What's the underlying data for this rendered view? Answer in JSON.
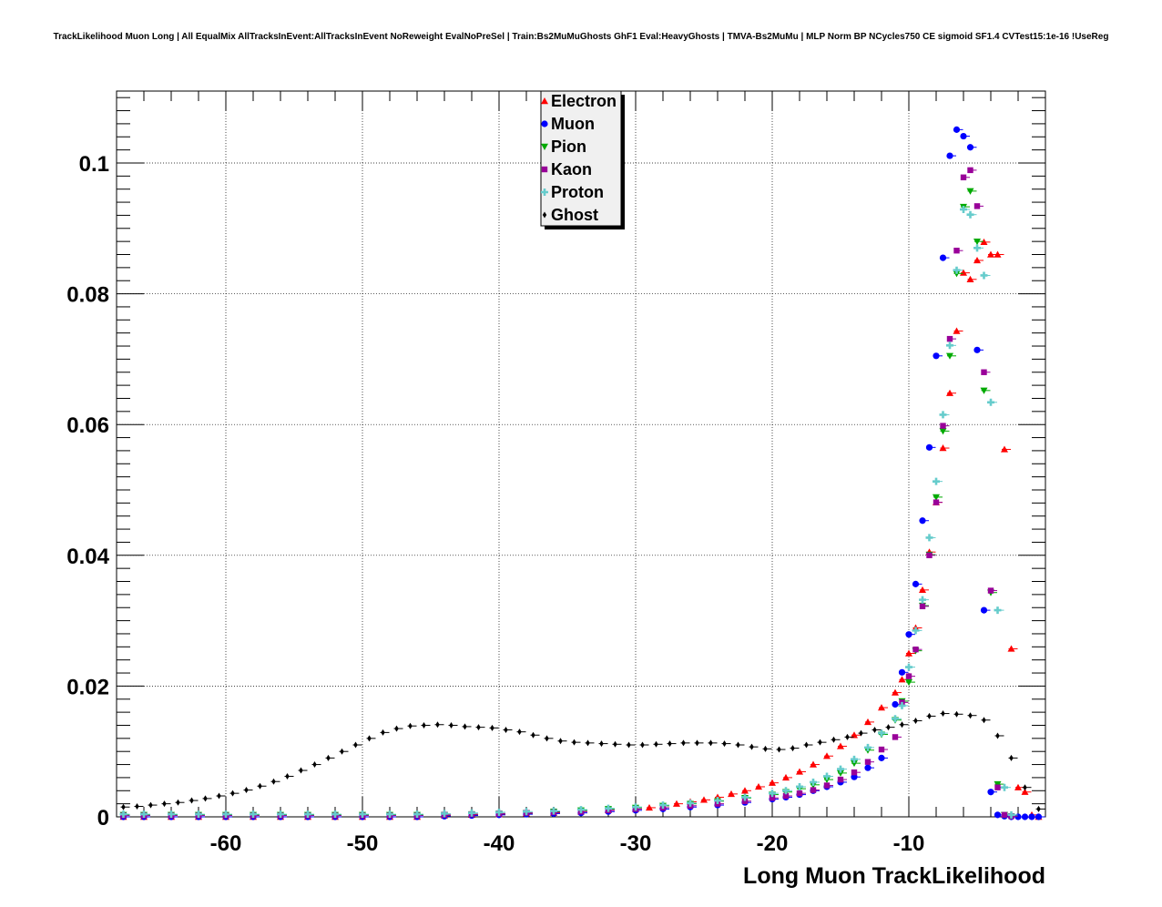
{
  "chart_data": {
    "type": "scatter",
    "title": "TrackLikelihood Muon Long | All EqualMix AllTracksInEvent:AllTracksInEvent NoReweight EvalNoPreSel | Train:Bs2MuMuGhosts GhF1 Eval:HeavyGhosts | TMVA-Bs2MuMu | MLP Norm BP NCycles750 CE sigmoid SF1.4 CVTest15:1e-16 !UseReg",
    "xlabel": "Long Muon TrackLikelihood",
    "ylabel": "",
    "xlim": [
      -68,
      0
    ],
    "ylim": [
      0,
      0.111
    ],
    "x_ticks": [
      -60,
      -50,
      -40,
      -30,
      -20,
      -10
    ],
    "x_tick_labels": [
      "-60",
      "-50",
      "-40",
      "-30",
      "-20",
      "-10"
    ],
    "y_ticks": [
      0,
      0.02,
      0.04,
      0.06,
      0.08,
      0.1
    ],
    "y_tick_labels": [
      "0",
      "0.02",
      "0.04",
      "0.06",
      "0.08",
      "0.1"
    ],
    "grid": true,
    "legend_position": "top-center",
    "series": [
      {
        "name": "Electron",
        "color": "#ff0000",
        "marker": "triangle-up",
        "x": [
          -67.5,
          -66,
          -64,
          -62,
          -60,
          -58,
          -56,
          -54,
          -52,
          -50,
          -48,
          -46,
          -44,
          -42,
          -40,
          -38,
          -36,
          -34,
          -32,
          -30,
          -29,
          -28,
          -27,
          -26,
          -25,
          -24,
          -23,
          -22,
          -21,
          -20,
          -19,
          -18,
          -17,
          -16,
          -15,
          -14,
          -13,
          -12,
          -11,
          -10.5,
          -10,
          -9.5,
          -9,
          -8.5,
          -8,
          -7.5,
          -7,
          -6.5,
          -6,
          -5.5,
          -5,
          -4.5,
          -4,
          -3.5,
          -3,
          -2.5,
          -2,
          -1.5,
          -1,
          -0.5
        ],
        "y": [
          0,
          0,
          0,
          0,
          0,
          0,
          0,
          0,
          0,
          0,
          0,
          0,
          0.0002,
          0.0003,
          0.0004,
          0.0005,
          0.0006,
          0.0008,
          0.001,
          0.0012,
          0.0014,
          0.0017,
          0.002,
          0.0023,
          0.0026,
          0.003,
          0.0035,
          0.004,
          0.0046,
          0.0052,
          0.006,
          0.0069,
          0.008,
          0.0093,
          0.0108,
          0.0125,
          0.0145,
          0.0167,
          0.019,
          0.021,
          0.025,
          0.0289,
          0.0347,
          0.0405,
          0.0481,
          0.0564,
          0.0648,
          0.0743,
          0.0832,
          0.0822,
          0.0851,
          0.0879,
          0.086,
          0.086,
          0.0562,
          0.0257,
          0.0045,
          0.0038,
          0.0003,
          0
        ]
      },
      {
        "name": "Muon",
        "color": "#0000ff",
        "marker": "circle",
        "x": [
          -67.5,
          -66,
          -64,
          -62,
          -60,
          -58,
          -56,
          -54,
          -52,
          -50,
          -48,
          -46,
          -44,
          -42,
          -40,
          -38,
          -36,
          -34,
          -32,
          -30,
          -28,
          -26,
          -24,
          -22,
          -20,
          -19,
          -18,
          -17,
          -16,
          -15,
          -14,
          -13,
          -12,
          -11,
          -10.5,
          -10,
          -9.5,
          -9,
          -8.5,
          -8,
          -7.5,
          -7,
          -6.5,
          -6,
          -5.5,
          -5,
          -4.5,
          -4,
          -3.5,
          -3,
          -2.5,
          -2,
          -1.5,
          -1,
          -0.5
        ],
        "y": [
          0,
          0,
          0,
          0,
          0,
          0,
          0,
          0,
          0,
          0,
          0,
          0,
          0.0001,
          0.0002,
          0.0003,
          0.0004,
          0.0005,
          0.0006,
          0.0008,
          0.001,
          0.0012,
          0.0015,
          0.0018,
          0.0022,
          0.0027,
          0.003,
          0.0034,
          0.004,
          0.0046,
          0.0053,
          0.0061,
          0.0075,
          0.009,
          0.0172,
          0.0221,
          0.0279,
          0.0356,
          0.0453,
          0.0565,
          0.0705,
          0.0855,
          0.1011,
          0.1051,
          0.1041,
          0.1024,
          0.0714,
          0.0316,
          0.0038,
          0.0003,
          0.0001,
          0,
          0,
          0,
          0,
          0
        ]
      },
      {
        "name": "Pion",
        "color": "#00aa00",
        "marker": "triangle-down",
        "x": [
          -67.5,
          -66,
          -64,
          -62,
          -60,
          -58,
          -56,
          -54,
          -52,
          -50,
          -48,
          -46,
          -44,
          -42,
          -40,
          -38,
          -36,
          -34,
          -32,
          -30,
          -28,
          -26,
          -24,
          -22,
          -20,
          -19,
          -18,
          -17,
          -16,
          -15,
          -14,
          -13,
          -12,
          -11,
          -10.5,
          -10,
          -9.5,
          -9,
          -8.5,
          -8,
          -7.5,
          -7,
          -6.5,
          -6,
          -5.5,
          -5,
          -4.5,
          -4,
          -3.5,
          -3,
          -2.5
        ],
        "y": [
          0.0003,
          0.0003,
          0.0003,
          0.0003,
          0.0003,
          0.0003,
          0.0003,
          0.0003,
          0.0003,
          0.0003,
          0.0003,
          0.0003,
          0.0003,
          0.0004,
          0.0005,
          0.0006,
          0.0008,
          0.001,
          0.0012,
          0.0014,
          0.0017,
          0.002,
          0.0024,
          0.0029,
          0.0034,
          0.0038,
          0.0043,
          0.0049,
          0.0057,
          0.0067,
          0.0082,
          0.0102,
          0.0126,
          0.0148,
          0.0177,
          0.0206,
          0.0254,
          0.0323,
          0.0401,
          0.0489,
          0.059,
          0.0705,
          0.0831,
          0.0933,
          0.0957,
          0.088,
          0.0652,
          0.0343,
          0.005,
          0.0003,
          0.0001
        ]
      },
      {
        "name": "Kaon",
        "color": "#990099",
        "marker": "square",
        "x": [
          -67.5,
          -66,
          -64,
          -62,
          -60,
          -58,
          -56,
          -54,
          -52,
          -50,
          -48,
          -46,
          -44,
          -42,
          -40,
          -38,
          -36,
          -34,
          -32,
          -30,
          -28,
          -26,
          -24,
          -22,
          -20,
          -19,
          -18,
          -17,
          -16,
          -15,
          -14,
          -13,
          -12,
          -11,
          -10.5,
          -10,
          -9.5,
          -9,
          -8.5,
          -8,
          -7.5,
          -7,
          -6.5,
          -6,
          -5.5,
          -5,
          -4.5,
          -4,
          -3.5,
          -3,
          -2.5
        ],
        "y": [
          0.0002,
          0.0002,
          0.0002,
          0.0002,
          0.0002,
          0.0002,
          0.0002,
          0.0002,
          0.0002,
          0.0002,
          0.0002,
          0.0002,
          0.0003,
          0.0004,
          0.0005,
          0.0006,
          0.0007,
          0.0008,
          0.001,
          0.0012,
          0.0014,
          0.0017,
          0.002,
          0.0024,
          0.0029,
          0.0032,
          0.0036,
          0.0041,
          0.0048,
          0.0057,
          0.0068,
          0.0084,
          0.0103,
          0.0122,
          0.0175,
          0.0215,
          0.0256,
          0.0322,
          0.04,
          0.0481,
          0.0598,
          0.0731,
          0.0866,
          0.0978,
          0.0989,
          0.0934,
          0.068,
          0.0346,
          0.0045,
          0.0003,
          0.0001
        ]
      },
      {
        "name": "Proton",
        "color": "#66cccc",
        "marker": "cross",
        "x": [
          -67.5,
          -66,
          -64,
          -62,
          -60,
          -58,
          -56,
          -54,
          -52,
          -50,
          -48,
          -46,
          -44,
          -42,
          -40,
          -38,
          -36,
          -34,
          -32,
          -30,
          -28,
          -26,
          -24,
          -22,
          -20,
          -19,
          -18,
          -17,
          -16,
          -15,
          -14,
          -13,
          -12,
          -11,
          -10.5,
          -10,
          -9.5,
          -9,
          -8.5,
          -8,
          -7.5,
          -7,
          -6.5,
          -6,
          -5.5,
          -5,
          -4.5,
          -4,
          -3.5,
          -3,
          -2.5
        ],
        "y": [
          0.0004,
          0.0004,
          0.0004,
          0.0004,
          0.0004,
          0.0004,
          0.0004,
          0.0004,
          0.0004,
          0.0004,
          0.0004,
          0.0004,
          0.0005,
          0.0006,
          0.0007,
          0.0008,
          0.0009,
          0.0011,
          0.0013,
          0.0015,
          0.0018,
          0.0021,
          0.0025,
          0.003,
          0.0036,
          0.004,
          0.0046,
          0.0053,
          0.0062,
          0.0073,
          0.0088,
          0.0106,
          0.0128,
          0.015,
          0.017,
          0.0229,
          0.0285,
          0.0332,
          0.0427,
          0.0513,
          0.0615,
          0.0721,
          0.0836,
          0.0929,
          0.0921,
          0.087,
          0.0828,
          0.0634,
          0.0316,
          0.0045,
          0.0003
        ]
      },
      {
        "name": "Ghost",
        "color": "#000000",
        "marker": "diamond",
        "x": [
          -67.5,
          -66.5,
          -65.5,
          -64.5,
          -63.5,
          -62.5,
          -61.5,
          -60.5,
          -59.5,
          -58.5,
          -57.5,
          -56.5,
          -55.5,
          -54.5,
          -53.5,
          -52.5,
          -51.5,
          -50.5,
          -49.5,
          -48.5,
          -47.5,
          -46.5,
          -45.5,
          -44.5,
          -43.5,
          -42.5,
          -41.5,
          -40.5,
          -39.5,
          -38.5,
          -37.5,
          -36.5,
          -35.5,
          -34.5,
          -33.5,
          -32.5,
          -31.5,
          -30.5,
          -29.5,
          -28.5,
          -27.5,
          -26.5,
          -25.5,
          -24.5,
          -23.5,
          -22.5,
          -21.5,
          -20.5,
          -19.5,
          -18.5,
          -17.5,
          -16.5,
          -15.5,
          -14.5,
          -13.5,
          -12.5,
          -11.5,
          -10.5,
          -9.5,
          -8.5,
          -7.5,
          -6.5,
          -5.5,
          -4.5,
          -3.5,
          -2.5,
          -1.5,
          -0.5
        ],
        "y": [
          0.0015,
          0.0016,
          0.0018,
          0.002,
          0.0022,
          0.0025,
          0.0028,
          0.0032,
          0.0036,
          0.0041,
          0.0047,
          0.0054,
          0.0062,
          0.0071,
          0.008,
          0.009,
          0.01,
          0.011,
          0.012,
          0.0129,
          0.0135,
          0.0139,
          0.014,
          0.0141,
          0.014,
          0.0138,
          0.0137,
          0.0136,
          0.0133,
          0.013,
          0.0125,
          0.012,
          0.0116,
          0.0114,
          0.0113,
          0.0112,
          0.0111,
          0.011,
          0.011,
          0.0111,
          0.0112,
          0.0113,
          0.0113,
          0.0113,
          0.0112,
          0.011,
          0.0107,
          0.0104,
          0.0103,
          0.0105,
          0.011,
          0.0114,
          0.0118,
          0.0122,
          0.0128,
          0.0133,
          0.0137,
          0.0141,
          0.0147,
          0.0154,
          0.0158,
          0.0157,
          0.0155,
          0.0148,
          0.0124,
          0.009,
          0.0045,
          0.0012
        ]
      }
    ]
  }
}
